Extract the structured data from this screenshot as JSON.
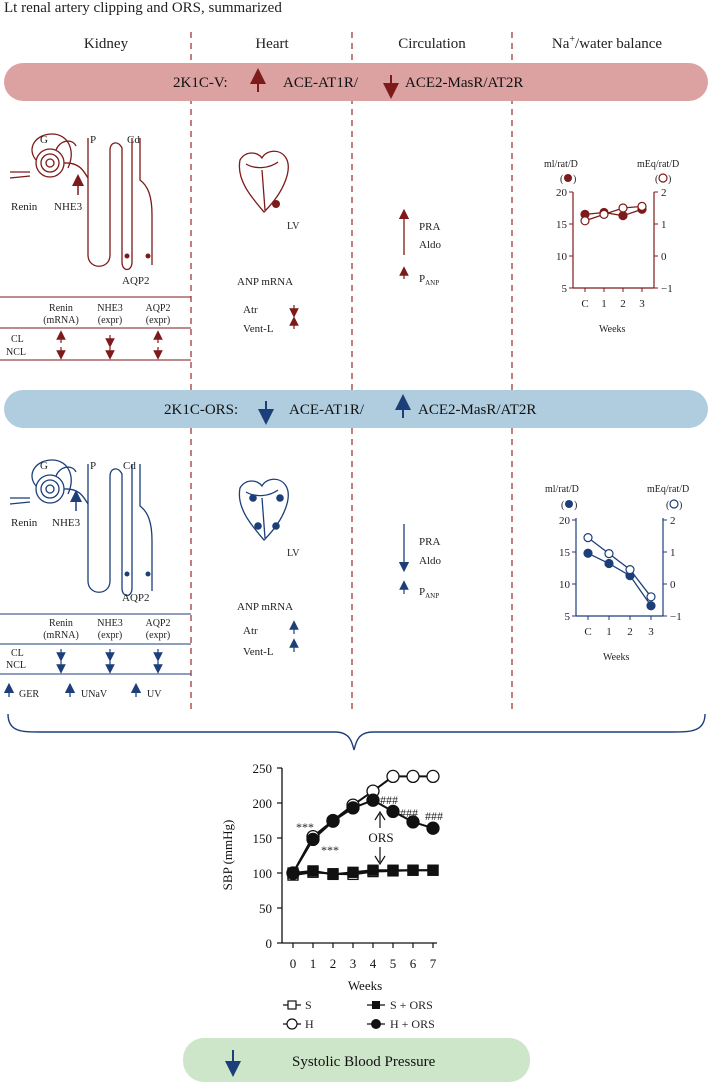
{
  "title": "Lt renal artery clipping and ORS, summarized",
  "columns": [
    "Kidney",
    "Heart",
    "Circulation",
    "Na+/water balance"
  ],
  "colors": {
    "red": "#7d1a1a",
    "blue": "#1c3f7a",
    "red_band": "#dca2a2",
    "blue_band": "#b0cde0",
    "green_band": "#cde6c9"
  },
  "band_v": {
    "label": "2K1C-V:",
    "up_text": "ACE-AT1R/",
    "down_text": "ACE2-MasR/AT2R"
  },
  "band_ors": {
    "label": "2K1C-ORS:",
    "down_text": "ACE-AT1R/",
    "up_text": "ACE2-MasR/AT2R"
  },
  "kidney_labels": {
    "g": "G",
    "p": "P",
    "cd": "Cd",
    "renin": "Renin",
    "nhe3": "NHE3",
    "aqp2": "AQP2"
  },
  "kidney_table": {
    "headers": [
      [
        "Renin",
        "(mRNA)"
      ],
      [
        "NHE3",
        "(expr)"
      ],
      [
        "AQP2",
        "(expr)"
      ]
    ],
    "rows": [
      "CL",
      "NCL"
    ]
  },
  "heart": {
    "lv": "LV",
    "anp": "ANP mRNA",
    "atr": "Atr",
    "vent": "Vent-L"
  },
  "circulation": {
    "pra": "PRA",
    "aldo": "Aldo",
    "p": "P",
    "anp_sub": "ANP"
  },
  "ors_extra": [
    "GER",
    "UNaV",
    "UV"
  ],
  "mini_chart_v": {
    "left_unit": "ml/rat/D",
    "right_unit": "mEq/rat/D",
    "left_ticks": [
      "20",
      "15",
      "10",
      "5"
    ],
    "right_ticks": [
      "2",
      "1",
      "0",
      "−1"
    ],
    "x_ticks": [
      "C",
      "1",
      "2",
      "3"
    ],
    "xlabel": "Weeks"
  },
  "mini_chart_ors": {
    "left_unit": "ml/rat/D",
    "right_unit": "mEq/rat/D",
    "left_ticks": [
      "20",
      "15",
      "10",
      "5"
    ],
    "right_ticks": [
      "2",
      "1",
      "0",
      "−1"
    ],
    "x_ticks": [
      "C",
      "1",
      "2",
      "3"
    ],
    "xlabel": "Weeks"
  },
  "chart_data": [
    {
      "type": "line",
      "x": [
        "C",
        "1",
        "2",
        "3"
      ],
      "series": [
        {
          "values": [
            16.5,
            16.8,
            16.3,
            17.3
          ],
          "axis": "left",
          "marker": "filled"
        },
        {
          "values": [
            1.1,
            1.3,
            1.5,
            1.55
          ],
          "axis": "right",
          "marker": "open"
        }
      ],
      "xlabel": "Weeks",
      "ylabel": "ml/rat/D",
      "y2label": "mEq/rat/D",
      "ylim": [
        5,
        20
      ],
      "y2lim": [
        -1,
        2
      ]
    },
    {
      "type": "line",
      "x": [
        "C",
        "1",
        "2",
        "3"
      ],
      "series": [
        {
          "values": [
            14.8,
            13.2,
            11.3,
            6.6
          ],
          "axis": "left",
          "marker": "filled"
        },
        {
          "values": [
            1.45,
            0.95,
            0.45,
            -0.4
          ],
          "axis": "right",
          "marker": "open"
        }
      ],
      "xlabel": "Weeks",
      "ylabel": "ml/rat/D",
      "y2label": "mEq/rat/D",
      "ylim": [
        5,
        20
      ],
      "y2lim": [
        -1,
        2
      ]
    },
    {
      "type": "line",
      "xlabel": "Weeks",
      "ylabel": "SBP (mmHg)",
      "x": [
        0,
        1,
        2,
        3,
        4,
        5,
        6,
        7
      ],
      "ylim": [
        0,
        250
      ],
      "yticks": [
        0,
        50,
        100,
        150,
        200,
        250
      ],
      "series": [
        {
          "name": "S",
          "values": [
            97,
            101,
            99,
            98,
            102,
            103,
            104,
            104
          ],
          "marker": "open-square"
        },
        {
          "name": "H",
          "values": [
            100,
            152,
            175,
            197,
            217,
            238,
            238,
            238
          ],
          "marker": "open-circle"
        },
        {
          "name": "S + ORS",
          "values": [
            100,
            103,
            98,
            101,
            104,
            104,
            104,
            104
          ],
          "marker": "filled-square"
        },
        {
          "name": "H + ORS",
          "values": [
            100,
            148,
            174,
            193,
            204,
            188,
            173,
            164
          ],
          "marker": "filled-circle"
        }
      ],
      "annotations": {
        "sig1": "***",
        "sig2": "***",
        "hash": "###",
        "ors": "ORS"
      }
    }
  ],
  "bottom_band": {
    "label": "Systolic Blood Pressure"
  }
}
